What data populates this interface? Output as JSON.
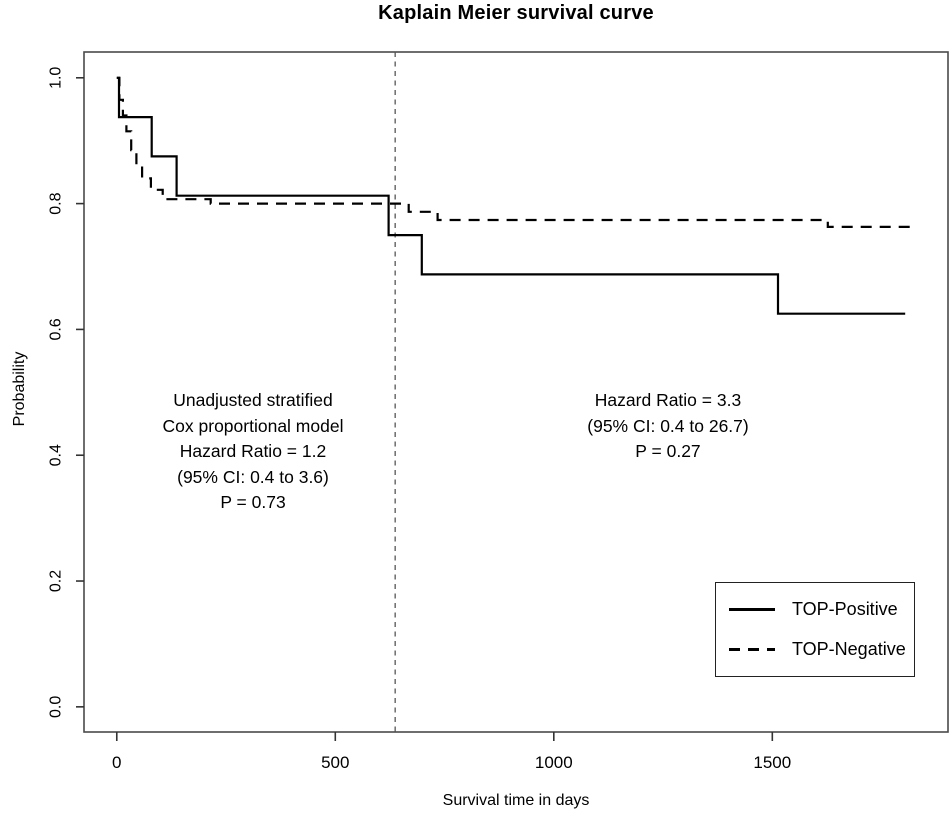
{
  "chart_data": {
    "type": "line",
    "subtype": "kaplan-meier-step",
    "title": "Kaplain Meier survival curve",
    "xlabel": "Survival time in days",
    "ylabel": "Probability",
    "xlim": [
      -75,
      1902
    ],
    "ylim": [
      -0.04,
      1.041
    ],
    "grid": false,
    "x_ticks": [
      {
        "value": 0,
        "label": "0"
      },
      {
        "value": 500,
        "label": "500"
      },
      {
        "value": 1000,
        "label": "1000"
      },
      {
        "value": 1500,
        "label": "1500"
      }
    ],
    "y_ticks": [
      {
        "value": 1.0,
        "label": "1.0"
      },
      {
        "value": 0.8,
        "label": "0.8"
      },
      {
        "value": 0.6,
        "label": "0.6"
      },
      {
        "value": 0.4,
        "label": "0.4"
      },
      {
        "value": 0.2,
        "label": "0.2"
      },
      {
        "value": 0.0,
        "label": "0.0"
      }
    ],
    "reference_line_x": 637,
    "series": [
      {
        "name": "TOP-Positive",
        "style": "solid",
        "points": [
          [
            0,
            1.0
          ],
          [
            5,
            0.9375
          ],
          [
            80,
            0.875
          ],
          [
            137,
            0.8125
          ],
          [
            622,
            0.75
          ],
          [
            698,
            0.6875
          ],
          [
            1513,
            0.625
          ],
          [
            1804,
            0.625
          ]
        ]
      },
      {
        "name": "TOP-Negative",
        "style": "dashed",
        "points": [
          [
            0,
            1.0
          ],
          [
            6,
            0.965
          ],
          [
            14,
            0.94
          ],
          [
            22,
            0.915
          ],
          [
            33,
            0.885
          ],
          [
            45,
            0.862
          ],
          [
            58,
            0.84
          ],
          [
            78,
            0.822
          ],
          [
            105,
            0.807
          ],
          [
            215,
            0.8
          ],
          [
            668,
            0.787
          ],
          [
            734,
            0.774
          ],
          [
            1627,
            0.763
          ],
          [
            1824,
            0.763
          ]
        ]
      }
    ],
    "annotations": {
      "left": {
        "lines": [
          "Unadjusted stratified",
          "Cox proportional model",
          "Hazard Ratio = 1.2",
          "(95% CI: 0.4 to 3.6)",
          "P = 0.73"
        ]
      },
      "right": {
        "lines": [
          "Hazard Ratio = 3.3",
          "(95% CI: 0.4 to 26.7)",
          "P = 0.27"
        ]
      }
    },
    "legend": {
      "position": "bottom-right",
      "entries": [
        {
          "label": "TOP-Positive",
          "style": "solid"
        },
        {
          "label": "TOP-Negative",
          "style": "dashed"
        }
      ]
    },
    "colors": {
      "curve": "#000000",
      "frame": "#4a4a4a",
      "tick": "#333333",
      "reference_line": "#555555",
      "text": "#000000",
      "background": "#ffffff"
    }
  }
}
